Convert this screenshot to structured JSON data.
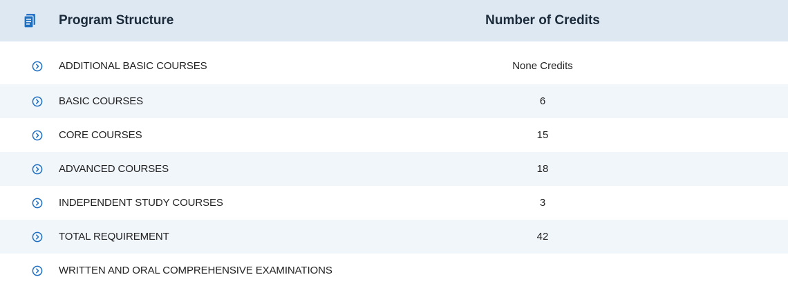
{
  "header": {
    "icon": "document-list-icon",
    "structure_label": "Program Structure",
    "credits_label": "Number of Credits"
  },
  "colors": {
    "header_bg": "#dde8f3",
    "stripe_bg": "#f1f6fb",
    "accent": "#1f6fc1"
  },
  "rows": [
    {
      "label": "ADDITIONAL BASIC COURSES",
      "credits": "None Credits"
    },
    {
      "label": "BASIC COURSES",
      "credits": "6"
    },
    {
      "label": "CORE COURSES",
      "credits": "15"
    },
    {
      "label": "ADVANCED COURSES",
      "credits": "18"
    },
    {
      "label": "INDEPENDENT STUDY COURSES",
      "credits": "3"
    },
    {
      "label": "TOTAL REQUIREMENT",
      "credits": "42"
    },
    {
      "label": "WRITTEN AND ORAL COMPREHENSIVE EXAMINATIONS",
      "credits": ""
    }
  ],
  "row_icon": "chevron-right-circle-icon"
}
